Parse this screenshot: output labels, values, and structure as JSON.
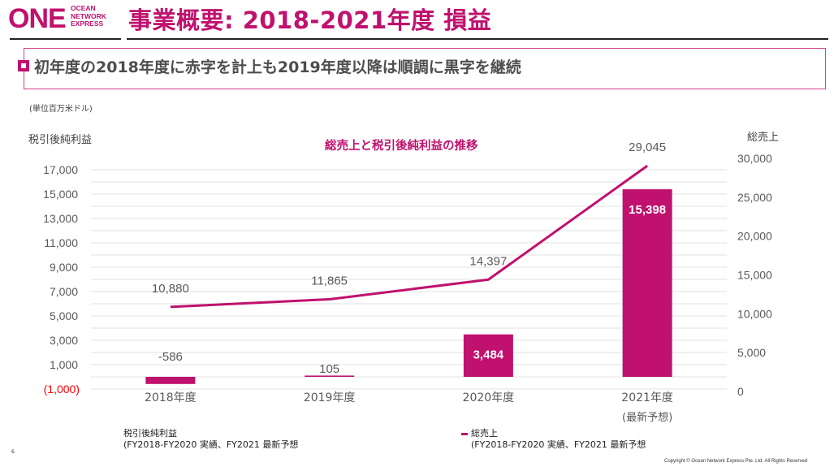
{
  "header": {
    "logo_mark": "ONE",
    "logo_text_lines": [
      "OCEAN",
      "NETWORK",
      "EXPRESS"
    ],
    "title": "事業概要: 2018-2021年度 損益"
  },
  "subtitle": {
    "bullet_icon": "square-bullet-icon",
    "text": "初年度の2018年度に赤字を計上も2019年度以降は順調に黒字を継続"
  },
  "unit_label": "(単位百万米ドル)",
  "colors": {
    "brand": "#c0116e",
    "negative_tick": "#ff0000",
    "grid": "#e6e6e6"
  },
  "chart_data": {
    "type": "bar+line",
    "title": "総売上と税引後純利益の推移",
    "categories": [
      "2018年度",
      "2019年度",
      "2020年度",
      "2021年度"
    ],
    "category_sublabels": [
      "",
      "",
      "",
      "(最新予想)"
    ],
    "series": [
      {
        "name": "税引後純利益",
        "type": "bar",
        "axis": "left",
        "values": [
          -586,
          105,
          3484,
          15398
        ],
        "labels": [
          "-586",
          "105",
          "3,484",
          "15,398"
        ]
      },
      {
        "name": "総売上",
        "type": "line",
        "axis": "right",
        "values": [
          10880,
          11865,
          14397,
          29045
        ],
        "labels": [
          "10,880",
          "11,865",
          "14,397",
          "29,045"
        ]
      }
    ],
    "left_axis": {
      "title": "税引後純利益",
      "range": [
        -1000,
        17000
      ],
      "ticks": [
        17000,
        15000,
        13000,
        11000,
        9000,
        7000,
        5000,
        3000,
        1000,
        -1000
      ],
      "tick_labels": [
        "17,000",
        "15,000",
        "13,000",
        "11,000",
        "9,000",
        "7,000",
        "5,000",
        "3,000",
        "1,000",
        "(1,000)"
      ],
      "grid_step": 1000
    },
    "right_axis": {
      "title": "総売上",
      "range": [
        0,
        30000
      ],
      "ticks": [
        30000,
        25000,
        20000,
        15000,
        10000,
        5000,
        0
      ],
      "tick_labels": [
        "30,000",
        "25,000",
        "20,000",
        "15,000",
        "10,000",
        "5,000",
        "0"
      ]
    },
    "grid": true,
    "legend": [
      {
        "name": "税引後純利益",
        "note": "(FY2018-FY2020 実績、FY2021 最新予想"
      },
      {
        "name": "総売上",
        "note": "(FY2018-FY2020 実績、FY2021 最新予想"
      }
    ],
    "legend_position": "bottom"
  },
  "footer": {
    "page_number": "6",
    "copyright": "Copyright © Ocean Network Express Pte. Ltd. All Rights Reserved"
  }
}
